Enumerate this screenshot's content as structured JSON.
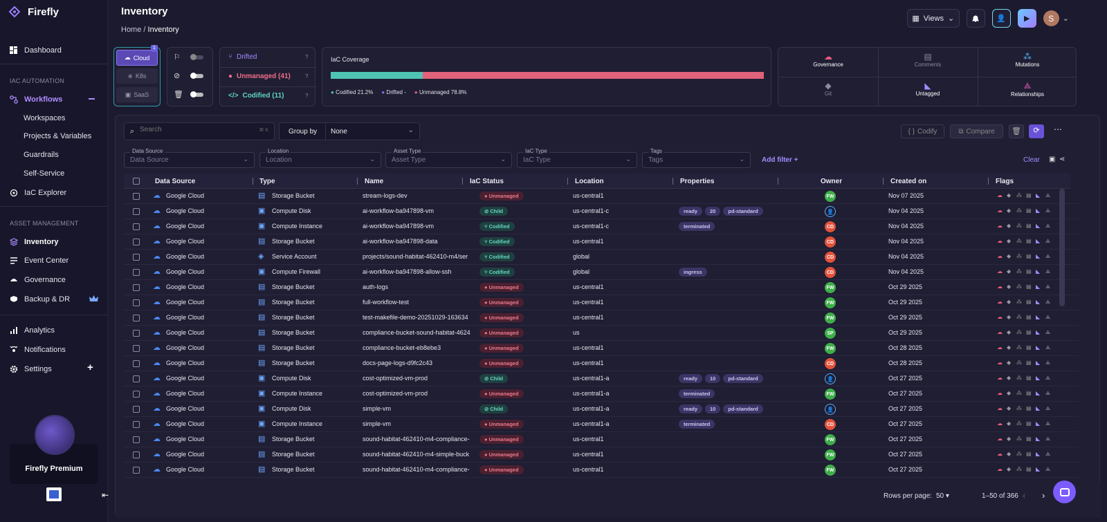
{
  "app": {
    "name": "Firefly"
  },
  "sidebar": {
    "dashboard": "Dashboard",
    "section_iac": "IAC AUTOMATION",
    "workflows": "Workflows",
    "sub": [
      "Workspaces",
      "Projects & Variables",
      "Guardrails",
      "Self-Service"
    ],
    "iac_explorer": "IaC Explorer",
    "section_asset": "ASSET MANAGEMENT",
    "inventory": "Inventory",
    "event_center": "Event Center",
    "governance": "Governance",
    "backup": "Backup & DR",
    "analytics": "Analytics",
    "notifications": "Notifications",
    "settings": "Settings",
    "premium": "Firefly Premium"
  },
  "header": {
    "title": "Inventory",
    "crumb_home": "Home",
    "crumb_sep": "/",
    "crumb_current": "Inventory"
  },
  "topbar": {
    "views": "Views",
    "avatar": "S"
  },
  "provider": {
    "cloud": "Cloud",
    "k8s": "K8s",
    "saas": "SaaS",
    "badge": "1"
  },
  "status": {
    "drifted": "Drifted",
    "unmanaged": "Unmanaged (41)",
    "codified": "Codified (11)"
  },
  "coverage": {
    "title": "IaC Coverage",
    "codified_pct": 21.2,
    "unmanaged_pct": 78.8,
    "legend_codified": "Codified 21.2%",
    "legend_drifted": "Drifted -",
    "legend_unmanaged": "Unmanaged 78.8%"
  },
  "quick": {
    "governance": "Governance",
    "comments": "Comments",
    "mutations": "Mutations",
    "git": "Git",
    "untagged": "Untagged",
    "relationships": "Relationships"
  },
  "toolbar": {
    "search_placeholder": "Search",
    "group_by": "Group by",
    "group_value": "None",
    "codify": "Codify",
    "compare": "Compare",
    "clear": "Clear",
    "add_filter": "Add filter +"
  },
  "filters": [
    {
      "label": "Data Source",
      "placeholder": "Data Source"
    },
    {
      "label": "Location",
      "placeholder": "Location"
    },
    {
      "label": "Asset Type",
      "placeholder": "Asset Type"
    },
    {
      "label": "IaC Type",
      "placeholder": "IaC Type"
    },
    {
      "label": "Tags",
      "placeholder": "Tags"
    }
  ],
  "columns": [
    "Data Source",
    "Type",
    "Name",
    "IaC Status",
    "Location",
    "Properties",
    "Owner",
    "Created on",
    "Flags"
  ],
  "rows": [
    {
      "src": "Google Cloud",
      "type": "Storage Bucket",
      "name": "stream-logs-dev",
      "status": "Unmanaged",
      "loc": "us-central1",
      "props": [],
      "owner": "FW",
      "date": "Nov 07 2025"
    },
    {
      "src": "Google Cloud",
      "type": "Compute Disk",
      "name": "ai-workflow-ba947898-vm",
      "status": "Child",
      "loc": "us-central1-c",
      "props": [
        "ready",
        "20",
        "pd-standard"
      ],
      "owner": "user",
      "date": "Nov 04 2025"
    },
    {
      "src": "Google Cloud",
      "type": "Compute Instance",
      "name": "ai-workflow-ba947898-vm",
      "status": "Codified",
      "loc": "us-central1-c",
      "props": [
        "terminated"
      ],
      "owner": "CD",
      "date": "Nov 04 2025"
    },
    {
      "src": "Google Cloud",
      "type": "Storage Bucket",
      "name": "ai-workflow-ba947898-data",
      "status": "Codified",
      "loc": "us-central1",
      "props": [],
      "owner": "CD",
      "date": "Nov 04 2025"
    },
    {
      "src": "Google Cloud",
      "type": "Service Account",
      "name": "projects/sound-habitat-462410-m4/ser",
      "status": "Codified",
      "loc": "global",
      "props": [],
      "owner": "CD",
      "date": "Nov 04 2025"
    },
    {
      "src": "Google Cloud",
      "type": "Compute Firewall",
      "name": "ai-workflow-ba947898-allow-ssh",
      "status": "Codified",
      "loc": "global",
      "props": [
        "ingress"
      ],
      "owner": "CD",
      "date": "Nov 04 2025"
    },
    {
      "src": "Google Cloud",
      "type": "Storage Bucket",
      "name": "auth-logs",
      "status": "Unmanaged",
      "loc": "us-central1",
      "props": [],
      "owner": "FW",
      "date": "Oct 29 2025"
    },
    {
      "src": "Google Cloud",
      "type": "Storage Bucket",
      "name": "full-workflow-test",
      "status": "Unmanaged",
      "loc": "us-central1",
      "props": [],
      "owner": "FW",
      "date": "Oct 29 2025"
    },
    {
      "src": "Google Cloud",
      "type": "Storage Bucket",
      "name": "test-makefile-demo-20251029-163634",
      "status": "Unmanaged",
      "loc": "us-central1",
      "props": [],
      "owner": "FW",
      "date": "Oct 29 2025"
    },
    {
      "src": "Google Cloud",
      "type": "Storage Bucket",
      "name": "compliance-bucket-sound-habitat-4624",
      "status": "Unmanaged",
      "loc": "us",
      "props": [],
      "owner": "SP",
      "date": "Oct 29 2025"
    },
    {
      "src": "Google Cloud",
      "type": "Storage Bucket",
      "name": "compliance-bucket-eb8ebe3",
      "status": "Unmanaged",
      "loc": "us-central1",
      "props": [],
      "owner": "FW",
      "date": "Oct 28 2025"
    },
    {
      "src": "Google Cloud",
      "type": "Storage Bucket",
      "name": "docs-page-logs-d9fc2c43",
      "status": "Unmanaged",
      "loc": "us-central1",
      "props": [],
      "owner": "CD",
      "date": "Oct 28 2025"
    },
    {
      "src": "Google Cloud",
      "type": "Compute Disk",
      "name": "cost-optimized-vm-prod",
      "status": "Child",
      "loc": "us-central1-a",
      "props": [
        "ready",
        "10",
        "pd-standard"
      ],
      "owner": "user",
      "date": "Oct 27 2025"
    },
    {
      "src": "Google Cloud",
      "type": "Compute Instance",
      "name": "cost-optimized-vm-prod",
      "status": "Unmanaged",
      "loc": "us-central1-a",
      "props": [
        "terminated"
      ],
      "owner": "FW",
      "date": "Oct 27 2025"
    },
    {
      "src": "Google Cloud",
      "type": "Compute Disk",
      "name": "simple-vm",
      "status": "Child",
      "loc": "us-central1-a",
      "props": [
        "ready",
        "10",
        "pd-standard"
      ],
      "owner": "user",
      "date": "Oct 27 2025"
    },
    {
      "src": "Google Cloud",
      "type": "Compute Instance",
      "name": "simple-vm",
      "status": "Unmanaged",
      "loc": "us-central1-a",
      "props": [
        "terminated"
      ],
      "owner": "CD",
      "date": "Oct 27 2025"
    },
    {
      "src": "Google Cloud",
      "type": "Storage Bucket",
      "name": "sound-habitat-462410-m4-compliance-",
      "status": "Unmanaged",
      "loc": "us-central1",
      "props": [],
      "owner": "FW",
      "date": "Oct 27 2025"
    },
    {
      "src": "Google Cloud",
      "type": "Storage Bucket",
      "name": "sound-habitat-462410-m4-simple-buck",
      "status": "Unmanaged",
      "loc": "us-central1",
      "props": [],
      "owner": "FW",
      "date": "Oct 27 2025"
    },
    {
      "src": "Google Cloud",
      "type": "Storage Bucket",
      "name": "sound-habitat-462410-m4-compliance-",
      "status": "Unmanaged",
      "loc": "us-central1",
      "props": [],
      "owner": "FW",
      "date": "Oct 27 2025"
    }
  ],
  "pagination": {
    "rows_per_page_label": "Rows per page:",
    "rows_per_page": "50",
    "range": "1–50 of 366"
  },
  "colors": {
    "accent": "#7c5cff",
    "codified": "#4fc4b4",
    "unmanaged": "#e0617a",
    "drifted": "#8e6cf0"
  }
}
